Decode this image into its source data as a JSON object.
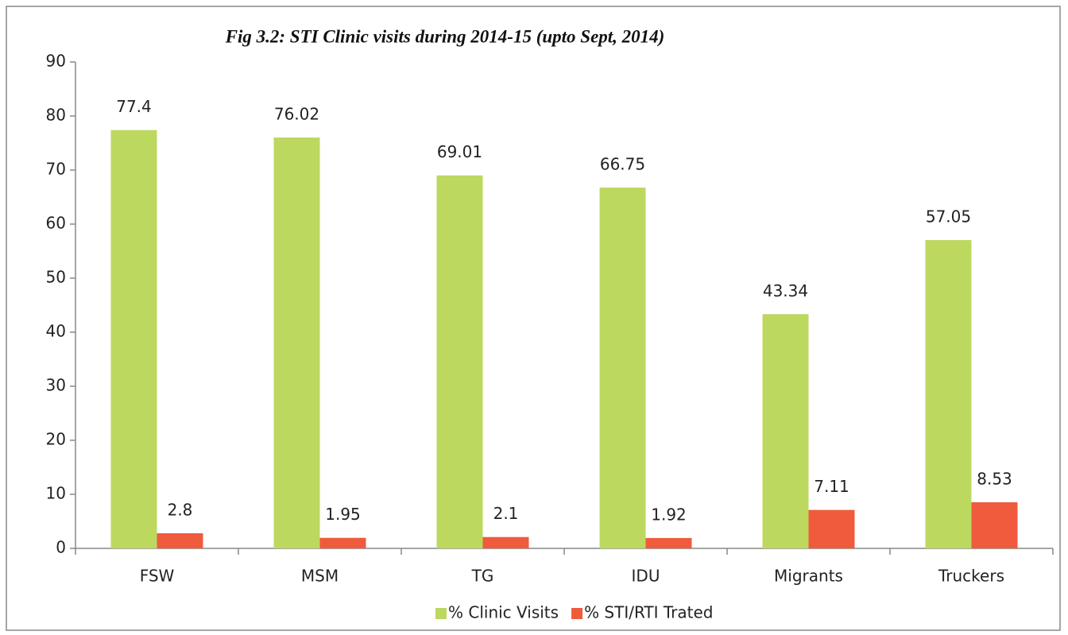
{
  "chart_data": {
    "type": "bar",
    "title": "Fig 3.2: STI Clinic visits during 2014-15 (upto Sept, 2014)",
    "categories": [
      "FSW",
      "MSM",
      "TG",
      "IDU",
      "Migrants",
      "Truckers"
    ],
    "series": [
      {
        "name": "% Clinic Visits",
        "color": "#bcd85f",
        "values": [
          77.4,
          76.02,
          69.01,
          66.75,
          43.34,
          57.05
        ]
      },
      {
        "name": "% STI/RTI Trated",
        "color": "#ef5b3c",
        "values": [
          2.8,
          1.95,
          2.1,
          1.92,
          7.11,
          8.53
        ]
      }
    ],
    "ylim": [
      0,
      90
    ],
    "yticks": [
      0,
      10,
      20,
      30,
      40,
      50,
      60,
      70,
      80,
      90
    ],
    "grid": false,
    "legend": "bottom"
  }
}
